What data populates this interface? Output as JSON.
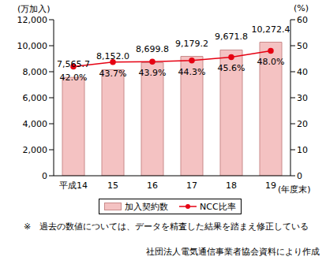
{
  "chart_data": {
    "type": "bar",
    "categories": [
      "平成14",
      "15",
      "16",
      "17",
      "18",
      "19"
    ],
    "x_label": "(年度末)",
    "y_label": "(万加入)",
    "y2_label": "(%)",
    "ylim": [
      0,
      12000
    ],
    "yticks": [
      0,
      {
        "value": 2000,
        "label": "2,000"
      },
      {
        "value": 4000,
        "label": "4,000"
      },
      {
        "value": 6000,
        "label": "6,000"
      },
      {
        "value": 8000,
        "label": "8,000"
      },
      {
        "value": 10000,
        "label": "10,000"
      },
      {
        "value": 12000,
        "label": "12,000"
      }
    ],
    "y2lim": [
      0,
      60
    ],
    "y2ticks": [
      0,
      10,
      20,
      30,
      40,
      50,
      60
    ],
    "grid": false,
    "legend": "bottom",
    "data_labels": true,
    "series": [
      {
        "name": "加入契約数",
        "type": "bar",
        "color": "#f4c2c2",
        "values": [
          7565.7,
          8152.0,
          8699.8,
          9179.2,
          9671.8,
          10272.4
        ],
        "value_labels": [
          "7,565.7",
          "8,152.0",
          "8,699.8",
          "9,179.2",
          "9,671.8",
          "10,272.4"
        ]
      },
      {
        "name": "NCC比率",
        "type": "line",
        "axis": "y2",
        "color": "#e60012",
        "marker": "circle",
        "values": [
          42.0,
          43.7,
          43.9,
          44.3,
          45.6,
          48.0
        ],
        "value_labels": [
          "42.0%",
          "43.7%",
          "43.9%",
          "44.3%",
          "45.6%",
          "48.0%"
        ]
      }
    ],
    "annotations": [
      "※　過去の数値については、データを精査した結果を踏まえ修正している",
      "社団法人電気通信事業者協会資料により作成"
    ]
  }
}
